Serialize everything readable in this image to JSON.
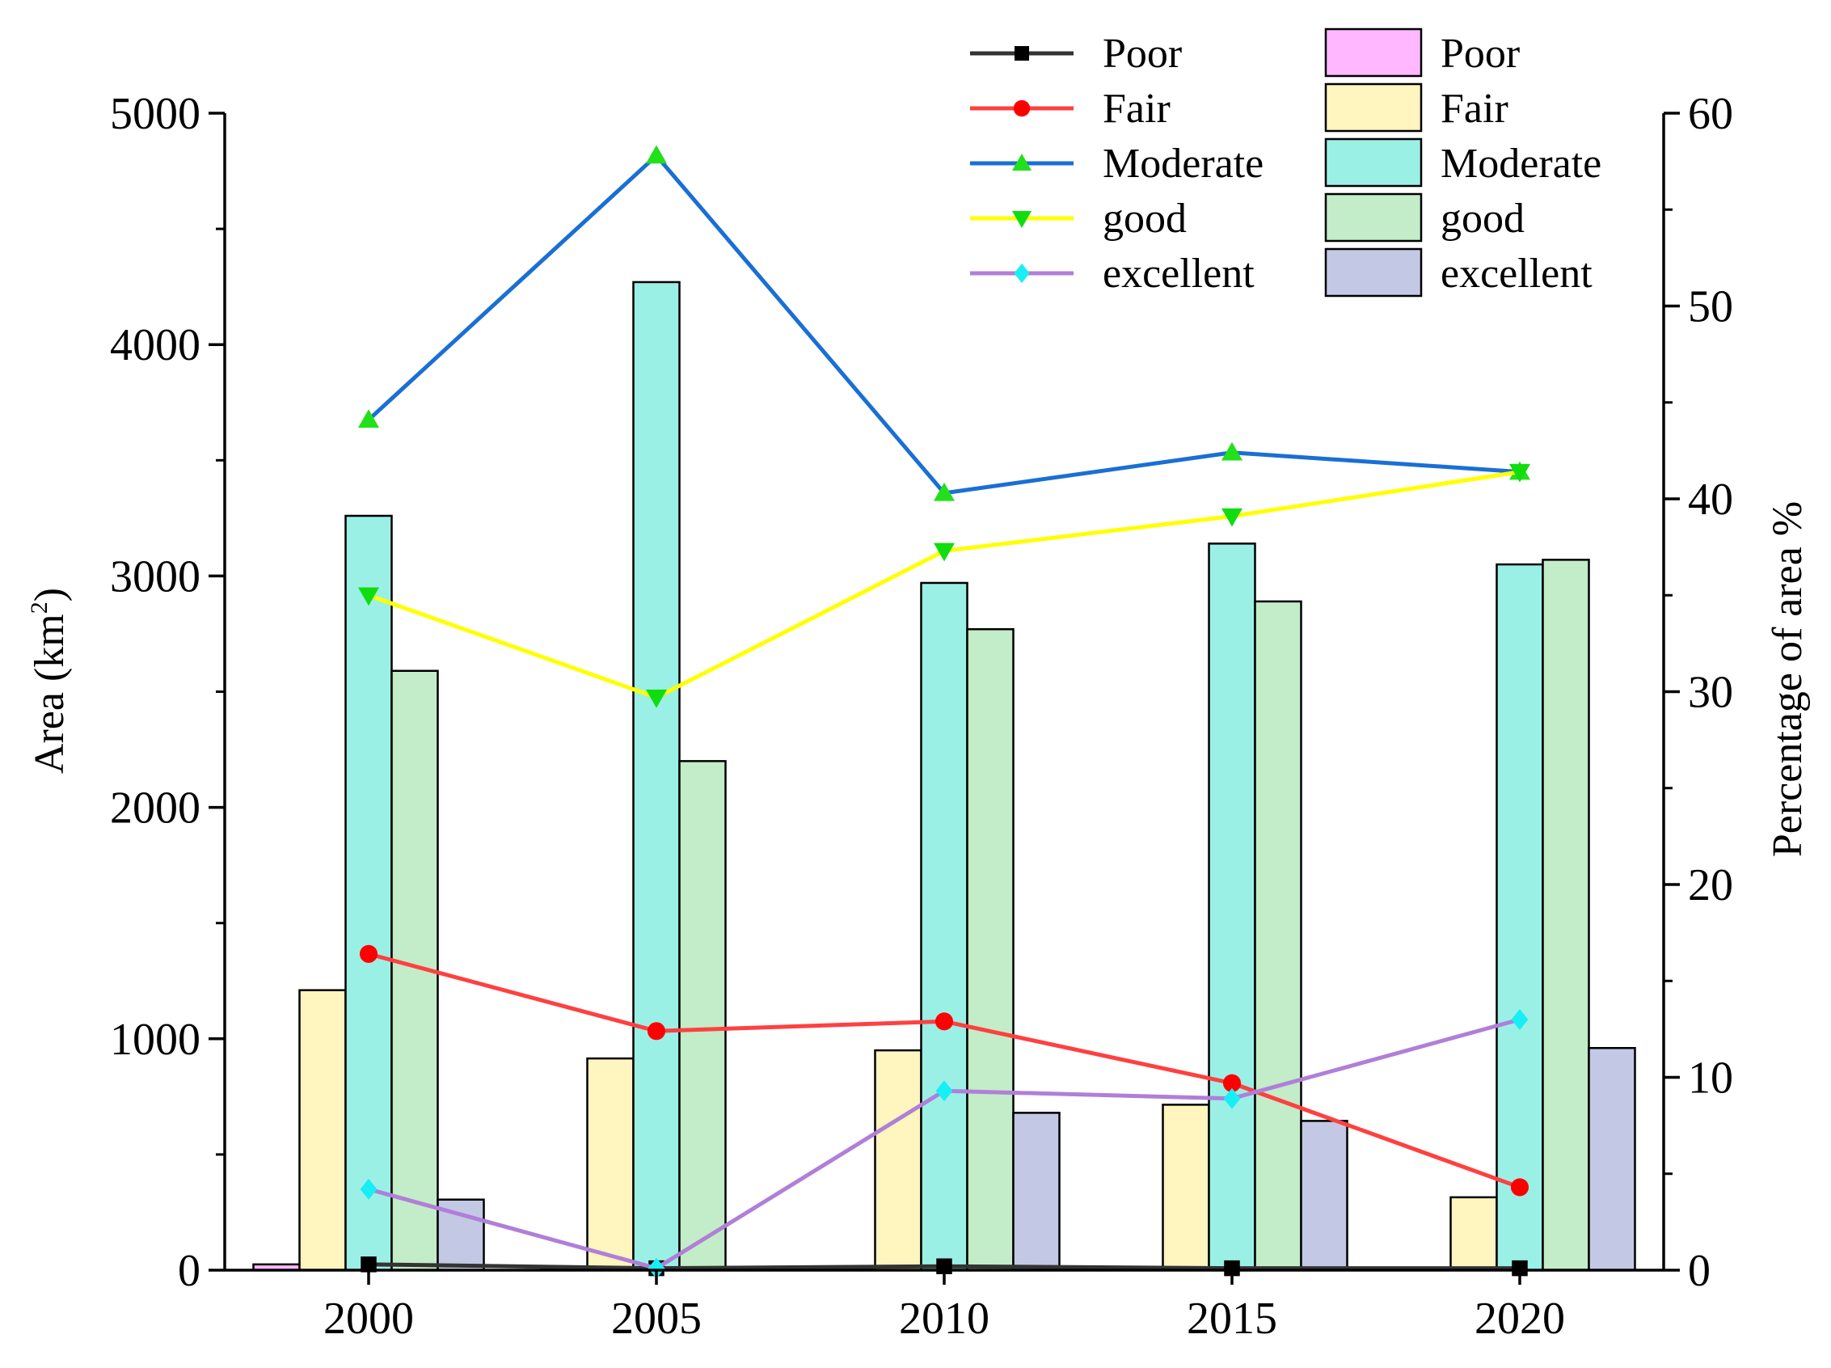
{
  "chart_data": {
    "type": "bar+line",
    "categories": [
      "2000",
      "2005",
      "2010",
      "2015",
      "2020"
    ],
    "left_axis": {
      "label_main": "Area (km",
      "label_sup": "2",
      "label_close": ")",
      "ylim": [
        0,
        5000
      ],
      "ticks": [
        "0",
        "1000",
        "2000",
        "3000",
        "4000",
        "5000"
      ],
      "tick_values": [
        0,
        1000,
        2000,
        3000,
        4000,
        5000
      ]
    },
    "right_axis": {
      "label": "Percentage of area %",
      "ylim": [
        0,
        60
      ],
      "ticks": [
        "0",
        "10",
        "20",
        "30",
        "40",
        "50",
        "60"
      ],
      "tick_values": [
        0,
        10,
        20,
        30,
        40,
        50,
        60
      ]
    },
    "bar_series": [
      {
        "name": "Poor",
        "color": "#ffb8ff",
        "values": [
          25,
          5,
          10,
          5,
          5
        ]
      },
      {
        "name": "Fair",
        "color": "#fff5bf",
        "values": [
          1210,
          915,
          950,
          715,
          315
        ]
      },
      {
        "name": "Moderate",
        "color": "#9bf0e6",
        "values": [
          3260,
          4270,
          2970,
          3140,
          3050
        ]
      },
      {
        "name": "good",
        "color": "#c3ecc8",
        "values": [
          2590,
          2200,
          2770,
          2890,
          3070
        ]
      },
      {
        "name": "excellent",
        "color": "#c3c9e4",
        "values": [
          305,
          5,
          680,
          645,
          960
        ]
      }
    ],
    "line_series": [
      {
        "name": "Poor",
        "color": "#333333",
        "marker": "square",
        "marker_color": "#000000",
        "values": [
          0.3,
          0.1,
          0.2,
          0.1,
          0.1
        ]
      },
      {
        "name": "Fair",
        "color": "#ff4040",
        "marker": "circle",
        "marker_color": "#ff0000",
        "values": [
          16.4,
          12.4,
          12.9,
          9.7,
          4.3
        ]
      },
      {
        "name": "Moderate",
        "color": "#1a6fd4",
        "marker": "triangle-up",
        "marker_color": "#22e01a",
        "values": [
          44.1,
          57.8,
          40.3,
          42.4,
          41.4
        ]
      },
      {
        "name": "good",
        "color": "#ffff00",
        "marker": "triangle-down",
        "marker_color": "#10dd10",
        "values": [
          35.0,
          29.7,
          37.3,
          39.1,
          41.4
        ]
      },
      {
        "name": "excellent",
        "color": "#b07fd8",
        "marker": "diamond",
        "marker_color": "#18eef6",
        "values": [
          4.2,
          0.1,
          9.3,
          8.9,
          13.0
        ]
      }
    ]
  }
}
